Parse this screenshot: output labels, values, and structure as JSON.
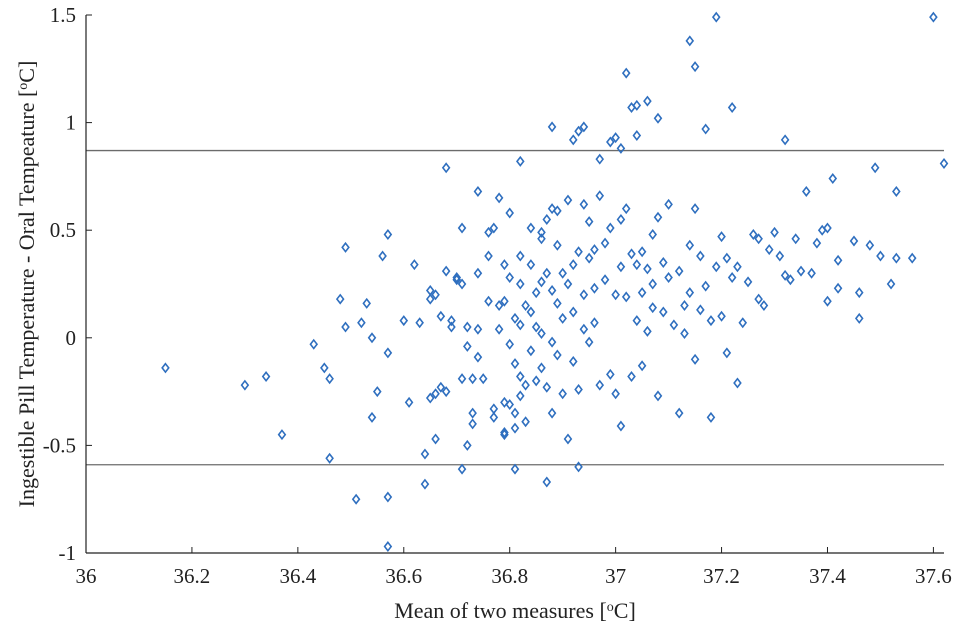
{
  "chart_data": {
    "type": "scatter",
    "xlabel": "Mean of two measures [",
    "xlabel_sup": "o",
    "xlabel_end": "C]",
    "ylabel": "Ingestible Pill Temperature - Oral Tempeature [",
    "ylabel_sup": "o",
    "ylabel_end": "C]",
    "xlim": [
      36,
      37.62
    ],
    "ylim": [
      -1,
      1.5
    ],
    "xticks": [
      "36",
      "36.2",
      "36.4",
      "36.6",
      "36.8",
      "37",
      "37.2",
      "37.4",
      "37.6"
    ],
    "yticks": [
      "-1",
      "-0.5",
      "0",
      "0.5",
      "1",
      "1.5"
    ],
    "reference_lines": [
      0.87,
      -0.59
    ],
    "marker": "diamond-open",
    "marker_color": "#2f6fbf",
    "line_color": "#6b6b6b",
    "points": [
      [
        36.15,
        -0.14
      ],
      [
        36.3,
        -0.22
      ],
      [
        36.34,
        -0.18
      ],
      [
        36.37,
        -0.45
      ],
      [
        36.43,
        -0.03
      ],
      [
        36.45,
        -0.14
      ],
      [
        36.46,
        -0.19
      ],
      [
        36.46,
        -0.56
      ],
      [
        36.48,
        0.18
      ],
      [
        36.49,
        0.05
      ],
      [
        36.49,
        0.42
      ],
      [
        36.51,
        -0.75
      ],
      [
        36.52,
        0.07
      ],
      [
        36.53,
        0.16
      ],
      [
        36.54,
        0.0
      ],
      [
        36.54,
        -0.37
      ],
      [
        36.55,
        -0.25
      ],
      [
        36.56,
        0.38
      ],
      [
        36.57,
        0.48
      ],
      [
        36.57,
        -0.07
      ],
      [
        36.57,
        -0.97
      ],
      [
        36.57,
        -0.74
      ],
      [
        36.6,
        0.08
      ],
      [
        36.61,
        -0.3
      ],
      [
        36.62,
        0.34
      ],
      [
        36.63,
        0.07
      ],
      [
        36.64,
        -0.54
      ],
      [
        36.64,
        -0.68
      ],
      [
        36.65,
        0.22
      ],
      [
        36.65,
        0.18
      ],
      [
        36.65,
        -0.28
      ],
      [
        36.66,
        -0.47
      ],
      [
        36.66,
        -0.26
      ],
      [
        36.66,
        0.2
      ],
      [
        36.67,
        0.1
      ],
      [
        36.67,
        -0.23
      ],
      [
        36.68,
        0.79
      ],
      [
        36.68,
        0.31
      ],
      [
        36.68,
        -0.25
      ],
      [
        36.69,
        0.08
      ],
      [
        36.69,
        0.05
      ],
      [
        36.7,
        0.27
      ],
      [
        36.7,
        0.28
      ],
      [
        36.71,
        -0.19
      ],
      [
        36.71,
        -0.61
      ],
      [
        36.71,
        0.51
      ],
      [
        36.71,
        0.25
      ],
      [
        36.72,
        -0.04
      ],
      [
        36.72,
        0.05
      ],
      [
        36.72,
        -0.5
      ],
      [
        36.73,
        -0.35
      ],
      [
        36.73,
        -0.19
      ],
      [
        36.73,
        -0.4
      ],
      [
        36.74,
        0.68
      ],
      [
        36.74,
        0.3
      ],
      [
        36.74,
        0.04
      ],
      [
        36.74,
        -0.09
      ],
      [
        36.75,
        -0.19
      ],
      [
        36.76,
        0.38
      ],
      [
        36.76,
        0.49
      ],
      [
        36.76,
        0.17
      ],
      [
        36.77,
        0.51
      ],
      [
        36.77,
        -0.33
      ],
      [
        36.77,
        -0.37
      ],
      [
        36.78,
        0.65
      ],
      [
        36.78,
        0.15
      ],
      [
        36.78,
        0.04
      ],
      [
        36.79,
        0.17
      ],
      [
        36.79,
        -0.3
      ],
      [
        36.79,
        -0.45
      ],
      [
        36.79,
        -0.44
      ],
      [
        36.79,
        0.34
      ],
      [
        36.8,
        0.58
      ],
      [
        36.8,
        0.28
      ],
      [
        36.8,
        -0.03
      ],
      [
        36.8,
        -0.31
      ],
      [
        36.81,
        -0.12
      ],
      [
        36.81,
        -0.35
      ],
      [
        36.81,
        -0.42
      ],
      [
        36.81,
        0.09
      ],
      [
        36.81,
        -0.61
      ],
      [
        36.82,
        0.82
      ],
      [
        36.82,
        0.38
      ],
      [
        36.82,
        0.25
      ],
      [
        36.82,
        0.06
      ],
      [
        36.82,
        -0.18
      ],
      [
        36.82,
        -0.27
      ],
      [
        36.83,
        -0.39
      ],
      [
        36.83,
        0.15
      ],
      [
        36.83,
        -0.22
      ],
      [
        36.84,
        0.51
      ],
      [
        36.84,
        0.34
      ],
      [
        36.84,
        0.12
      ],
      [
        36.84,
        -0.06
      ],
      [
        36.85,
        -0.2
      ],
      [
        36.85,
        0.05
      ],
      [
        36.85,
        0.21
      ],
      [
        36.86,
        0.49
      ],
      [
        36.86,
        0.46
      ],
      [
        36.86,
        0.26
      ],
      [
        36.86,
        0.02
      ],
      [
        36.86,
        -0.14
      ],
      [
        36.87,
        -0.23
      ],
      [
        36.87,
        -0.67
      ],
      [
        36.87,
        0.55
      ],
      [
        36.87,
        0.3
      ],
      [
        36.88,
        0.98
      ],
      [
        36.88,
        0.6
      ],
      [
        36.88,
        0.22
      ],
      [
        36.88,
        -0.02
      ],
      [
        36.88,
        -0.35
      ],
      [
        36.89,
        0.59
      ],
      [
        36.89,
        0.43
      ],
      [
        36.89,
        0.16
      ],
      [
        36.89,
        -0.08
      ],
      [
        36.9,
        -0.26
      ],
      [
        36.9,
        0.3
      ],
      [
        36.9,
        0.09
      ],
      [
        36.91,
        0.64
      ],
      [
        36.91,
        0.25
      ],
      [
        36.91,
        -0.47
      ],
      [
        36.92,
        0.92
      ],
      [
        36.92,
        0.34
      ],
      [
        36.92,
        0.12
      ],
      [
        36.92,
        -0.11
      ],
      [
        36.93,
        0.96
      ],
      [
        36.93,
        0.4
      ],
      [
        36.93,
        -0.24
      ],
      [
        36.93,
        -0.6
      ],
      [
        36.94,
        0.98
      ],
      [
        36.94,
        0.62
      ],
      [
        36.94,
        0.2
      ],
      [
        36.94,
        0.04
      ],
      [
        36.95,
        0.54
      ],
      [
        36.95,
        0.37
      ],
      [
        36.95,
        -0.02
      ],
      [
        36.96,
        0.41
      ],
      [
        36.96,
        0.23
      ],
      [
        36.96,
        0.07
      ],
      [
        36.97,
        0.83
      ],
      [
        36.97,
        0.66
      ],
      [
        36.97,
        -0.22
      ],
      [
        36.98,
        0.44
      ],
      [
        36.98,
        0.27
      ],
      [
        36.99,
        0.91
      ],
      [
        36.99,
        0.51
      ],
      [
        36.99,
        -0.17
      ],
      [
        37.0,
        0.93
      ],
      [
        37.0,
        0.2
      ],
      [
        37.0,
        -0.26
      ],
      [
        37.01,
        0.88
      ],
      [
        37.01,
        0.55
      ],
      [
        37.01,
        0.33
      ],
      [
        37.01,
        -0.41
      ],
      [
        37.02,
        1.23
      ],
      [
        37.02,
        0.6
      ],
      [
        37.02,
        0.19
      ],
      [
        37.03,
        1.07
      ],
      [
        37.03,
        0.39
      ],
      [
        37.03,
        -0.18
      ],
      [
        37.04,
        1.08
      ],
      [
        37.04,
        0.94
      ],
      [
        37.04,
        0.34
      ],
      [
        37.04,
        0.08
      ],
      [
        37.05,
        0.4
      ],
      [
        37.05,
        0.21
      ],
      [
        37.05,
        -0.13
      ],
      [
        37.06,
        1.1
      ],
      [
        37.06,
        0.32
      ],
      [
        37.06,
        0.03
      ],
      [
        37.07,
        0.48
      ],
      [
        37.07,
        0.25
      ],
      [
        37.07,
        0.14
      ],
      [
        37.08,
        1.02
      ],
      [
        37.08,
        0.56
      ],
      [
        37.08,
        -0.27
      ],
      [
        37.09,
        0.35
      ],
      [
        37.09,
        0.12
      ],
      [
        37.1,
        0.62
      ],
      [
        37.1,
        0.28
      ],
      [
        37.11,
        0.06
      ],
      [
        37.12,
        0.31
      ],
      [
        37.12,
        -0.35
      ],
      [
        37.13,
        0.15
      ],
      [
        37.13,
        0.02
      ],
      [
        37.14,
        1.38
      ],
      [
        37.14,
        0.43
      ],
      [
        37.14,
        0.21
      ],
      [
        37.15,
        1.26
      ],
      [
        37.15,
        0.6
      ],
      [
        37.15,
        -0.1
      ],
      [
        37.16,
        0.38
      ],
      [
        37.16,
        0.13
      ],
      [
        37.17,
        0.97
      ],
      [
        37.17,
        0.24
      ],
      [
        37.18,
        0.08
      ],
      [
        37.18,
        -0.37
      ],
      [
        37.19,
        1.49
      ],
      [
        37.19,
        0.33
      ],
      [
        37.2,
        0.47
      ],
      [
        37.2,
        0.1
      ],
      [
        37.21,
        0.37
      ],
      [
        37.21,
        -0.07
      ],
      [
        37.22,
        1.07
      ],
      [
        37.22,
        0.28
      ],
      [
        37.23,
        0.33
      ],
      [
        37.23,
        -0.21
      ],
      [
        37.24,
        0.07
      ],
      [
        37.25,
        0.26
      ],
      [
        37.26,
        0.48
      ],
      [
        37.27,
        0.46
      ],
      [
        37.27,
        0.18
      ],
      [
        37.28,
        0.15
      ],
      [
        37.29,
        0.41
      ],
      [
        37.3,
        0.49
      ],
      [
        37.31,
        0.38
      ],
      [
        37.32,
        0.92
      ],
      [
        37.32,
        0.29
      ],
      [
        37.33,
        0.27
      ],
      [
        37.34,
        0.46
      ],
      [
        37.35,
        0.31
      ],
      [
        37.36,
        0.68
      ],
      [
        37.37,
        0.3
      ],
      [
        37.38,
        0.44
      ],
      [
        37.39,
        0.5
      ],
      [
        37.4,
        0.51
      ],
      [
        37.4,
        0.17
      ],
      [
        37.41,
        0.74
      ],
      [
        37.42,
        0.36
      ],
      [
        37.42,
        0.23
      ],
      [
        37.45,
        0.45
      ],
      [
        37.46,
        0.21
      ],
      [
        37.46,
        0.09
      ],
      [
        37.48,
        0.43
      ],
      [
        37.49,
        0.79
      ],
      [
        37.5,
        0.38
      ],
      [
        37.52,
        0.25
      ],
      [
        37.53,
        0.68
      ],
      [
        37.53,
        0.37
      ],
      [
        37.56,
        0.37
      ],
      [
        37.6,
        1.49
      ],
      [
        37.62,
        0.81
      ]
    ]
  }
}
